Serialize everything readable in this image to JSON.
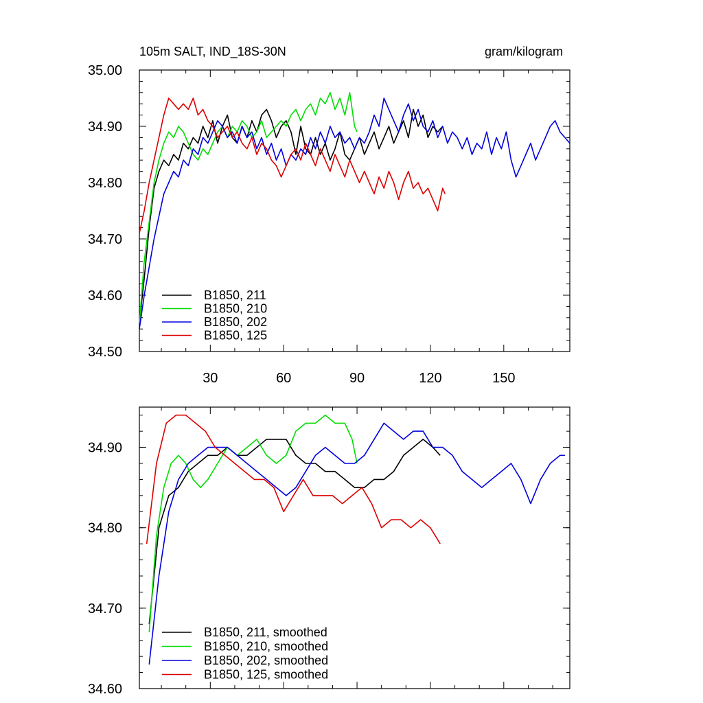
{
  "chart_data": [
    {
      "type": "line",
      "title": "105m SALT, IND_18S-30N",
      "units": "gram/kilogram",
      "xlabel": "",
      "ylabel": "",
      "xlim": [
        1,
        177
      ],
      "ylim": [
        34.5,
        35.0
      ],
      "xticks": [
        30,
        60,
        90,
        120,
        150
      ],
      "xtick_labels": [
        "30",
        "60",
        "90",
        "120",
        "150"
      ],
      "yticks": [
        34.5,
        34.6,
        34.7,
        34.8,
        34.9,
        35.0
      ],
      "ytick_labels": [
        "34.50",
        "34.60",
        "34.70",
        "34.80",
        "34.90",
        "35.00"
      ],
      "legend_position": "bottom-left",
      "series": [
        {
          "name": "B1850, 211",
          "color": "#000000",
          "x": [
            1,
            3,
            5,
            7,
            9,
            11,
            13,
            15,
            17,
            19,
            21,
            23,
            25,
            27,
            29,
            31,
            33,
            35,
            37,
            39,
            41,
            43,
            45,
            47,
            49,
            51,
            53,
            55,
            57,
            59,
            61,
            63,
            65,
            67,
            69,
            71,
            73,
            75,
            77,
            79,
            81,
            83,
            85,
            87,
            89,
            91,
            93,
            95,
            97,
            99,
            101,
            103,
            105,
            107,
            109,
            111,
            113,
            115,
            117,
            119,
            121,
            123,
            125
          ],
          "values": [
            34.55,
            34.63,
            34.72,
            34.79,
            34.82,
            34.84,
            34.83,
            34.85,
            34.84,
            34.87,
            34.86,
            34.88,
            34.87,
            34.9,
            34.88,
            34.91,
            34.87,
            34.9,
            34.92,
            34.88,
            34.87,
            34.9,
            34.88,
            34.91,
            34.89,
            34.92,
            34.93,
            34.91,
            34.88,
            34.9,
            34.91,
            34.89,
            34.85,
            34.9,
            34.86,
            34.85,
            34.88,
            34.85,
            34.87,
            34.84,
            34.86,
            34.89,
            34.85,
            34.84,
            34.86,
            34.88,
            34.85,
            34.87,
            34.89,
            34.86,
            34.88,
            34.9,
            34.87,
            34.89,
            34.91,
            34.88,
            34.93,
            34.9,
            34.92,
            34.88,
            34.9,
            34.89,
            34.9
          ]
        },
        {
          "name": "B1850, 210",
          "color": "#00dd00",
          "x": [
            1,
            3,
            5,
            7,
            9,
            11,
            13,
            15,
            17,
            19,
            21,
            23,
            25,
            27,
            29,
            31,
            33,
            35,
            37,
            39,
            41,
            43,
            45,
            47,
            49,
            51,
            53,
            55,
            57,
            59,
            61,
            63,
            65,
            67,
            69,
            71,
            73,
            75,
            77,
            79,
            81,
            83,
            85,
            87,
            89,
            90
          ],
          "values": [
            34.55,
            34.66,
            34.73,
            34.8,
            34.84,
            34.87,
            34.89,
            34.88,
            34.9,
            34.89,
            34.87,
            34.85,
            34.84,
            34.86,
            34.85,
            34.87,
            34.89,
            34.9,
            34.88,
            34.9,
            34.89,
            34.91,
            34.9,
            34.88,
            34.89,
            34.91,
            34.88,
            34.89,
            34.9,
            34.91,
            34.9,
            34.92,
            34.93,
            34.91,
            34.93,
            34.94,
            34.92,
            34.95,
            34.94,
            34.96,
            34.93,
            34.95,
            34.92,
            34.96,
            34.9,
            34.89
          ]
        },
        {
          "name": "B1850, 202",
          "color": "#0000dd",
          "x": [
            1,
            3,
            5,
            7,
            9,
            11,
            13,
            15,
            17,
            19,
            21,
            23,
            25,
            27,
            29,
            31,
            33,
            35,
            37,
            39,
            41,
            43,
            45,
            47,
            49,
            51,
            53,
            55,
            57,
            59,
            61,
            63,
            65,
            67,
            69,
            71,
            73,
            75,
            77,
            79,
            81,
            83,
            85,
            87,
            89,
            91,
            93,
            95,
            97,
            99,
            101,
            103,
            105,
            107,
            109,
            111,
            113,
            115,
            117,
            119,
            121,
            123,
            125,
            127,
            129,
            131,
            133,
            135,
            137,
            139,
            141,
            143,
            145,
            147,
            149,
            151,
            153,
            155,
            157,
            159,
            161,
            163,
            165,
            167,
            169,
            171,
            173,
            175,
            177
          ],
          "values": [
            34.54,
            34.6,
            34.65,
            34.7,
            34.74,
            34.78,
            34.8,
            34.82,
            34.81,
            34.84,
            34.83,
            34.86,
            34.85,
            34.88,
            34.87,
            34.89,
            34.91,
            34.9,
            34.88,
            34.89,
            34.87,
            34.9,
            34.88,
            34.89,
            34.86,
            34.88,
            34.85,
            34.87,
            34.84,
            34.86,
            34.83,
            34.85,
            34.84,
            34.86,
            34.85,
            34.88,
            34.86,
            34.89,
            34.87,
            34.9,
            34.88,
            34.89,
            34.87,
            34.88,
            34.86,
            34.88,
            34.87,
            34.89,
            34.92,
            34.9,
            34.95,
            34.93,
            34.91,
            34.89,
            34.92,
            34.94,
            34.91,
            34.93,
            34.9,
            34.89,
            34.91,
            34.88,
            34.9,
            34.87,
            34.89,
            34.88,
            34.86,
            34.88,
            34.85,
            34.87,
            34.86,
            34.89,
            34.85,
            34.88,
            34.86,
            34.89,
            34.84,
            34.81,
            34.83,
            34.85,
            34.87,
            34.84,
            34.86,
            34.88,
            34.9,
            34.91,
            34.89,
            34.88,
            34.87
          ]
        },
        {
          "name": "B1850, 125",
          "color": "#dd0000",
          "x": [
            1,
            3,
            5,
            7,
            9,
            11,
            13,
            15,
            17,
            19,
            21,
            23,
            25,
            27,
            29,
            31,
            33,
            35,
            37,
            39,
            41,
            43,
            45,
            47,
            49,
            51,
            53,
            55,
            57,
            59,
            61,
            63,
            65,
            67,
            69,
            71,
            73,
            75,
            77,
            79,
            81,
            83,
            85,
            87,
            89,
            91,
            93,
            95,
            97,
            99,
            101,
            103,
            105,
            107,
            109,
            111,
            113,
            115,
            117,
            119,
            121,
            123,
            125,
            126
          ],
          "values": [
            34.71,
            34.75,
            34.8,
            34.84,
            34.88,
            34.92,
            34.95,
            34.94,
            34.93,
            34.94,
            34.93,
            34.95,
            34.92,
            34.93,
            34.91,
            34.9,
            34.88,
            34.89,
            34.9,
            34.88,
            34.89,
            34.87,
            34.86,
            34.88,
            34.85,
            34.87,
            34.86,
            34.84,
            34.83,
            34.81,
            34.83,
            34.85,
            34.86,
            34.84,
            34.87,
            34.85,
            34.83,
            34.86,
            34.84,
            34.82,
            34.85,
            34.83,
            34.81,
            34.84,
            34.82,
            34.8,
            34.82,
            34.8,
            34.78,
            34.81,
            34.79,
            34.82,
            34.8,
            34.77,
            34.8,
            34.82,
            34.79,
            34.8,
            34.78,
            34.79,
            34.77,
            34.75,
            34.79,
            34.78
          ]
        }
      ]
    },
    {
      "type": "line",
      "title": "",
      "xlabel": "",
      "ylabel": "",
      "xlim": [
        1,
        177
      ],
      "ylim": [
        34.6,
        34.95
      ],
      "xticks": [
        30,
        60,
        90,
        120,
        150
      ],
      "yticks": [
        34.6,
        34.7,
        34.8,
        34.9
      ],
      "ytick_labels": [
        "34.60",
        "34.70",
        "34.80",
        "34.90"
      ],
      "legend_position": "bottom-left",
      "series": [
        {
          "name": "B1850, 211, smoothed",
          "color": "#000000",
          "x": [
            5,
            9,
            13,
            17,
            21,
            25,
            29,
            33,
            37,
            41,
            45,
            49,
            53,
            57,
            61,
            65,
            69,
            73,
            77,
            81,
            85,
            89,
            93,
            97,
            101,
            105,
            109,
            113,
            117,
            121,
            124
          ],
          "values": [
            34.68,
            34.8,
            34.84,
            34.85,
            34.87,
            34.88,
            34.89,
            34.89,
            34.9,
            34.89,
            34.89,
            34.9,
            34.91,
            34.91,
            34.91,
            34.89,
            34.88,
            34.88,
            34.87,
            34.87,
            34.86,
            34.85,
            34.85,
            34.86,
            34.86,
            34.87,
            34.89,
            34.9,
            34.91,
            34.9,
            34.89
          ]
        },
        {
          "name": "B1850, 210, smoothed",
          "color": "#00dd00",
          "x": [
            5,
            8,
            11,
            14,
            17,
            20,
            23,
            26,
            29,
            33,
            37,
            41,
            45,
            49,
            53,
            57,
            61,
            65,
            69,
            73,
            77,
            81,
            85,
            88,
            90
          ],
          "values": [
            34.67,
            34.79,
            34.85,
            34.88,
            34.89,
            34.88,
            34.86,
            34.85,
            34.86,
            34.88,
            34.9,
            34.89,
            34.9,
            34.91,
            34.89,
            34.88,
            34.89,
            34.92,
            34.93,
            34.93,
            34.94,
            34.93,
            34.93,
            34.91,
            34.88
          ]
        },
        {
          "name": "B1850, 202, smoothed",
          "color": "#0000dd",
          "x": [
            5,
            9,
            13,
            17,
            21,
            25,
            29,
            33,
            37,
            41,
            45,
            49,
            53,
            57,
            61,
            65,
            69,
            73,
            77,
            81,
            85,
            89,
            93,
            97,
            101,
            105,
            109,
            113,
            117,
            121,
            125,
            129,
            133,
            137,
            141,
            145,
            149,
            153,
            157,
            161,
            165,
            169,
            173,
            175
          ],
          "values": [
            34.63,
            34.74,
            34.82,
            34.86,
            34.88,
            34.89,
            34.9,
            34.9,
            34.9,
            34.89,
            34.88,
            34.87,
            34.86,
            34.85,
            34.84,
            34.85,
            34.87,
            34.89,
            34.9,
            34.89,
            34.88,
            34.88,
            34.89,
            34.91,
            34.93,
            34.92,
            34.91,
            34.92,
            34.92,
            34.9,
            34.9,
            34.89,
            34.87,
            34.86,
            34.85,
            34.86,
            34.87,
            34.88,
            34.86,
            34.83,
            34.86,
            34.88,
            34.89,
            34.89
          ]
        },
        {
          "name": "B1850, 125, smoothed",
          "color": "#dd0000",
          "x": [
            4,
            8,
            12,
            16,
            20,
            24,
            28,
            32,
            36,
            40,
            44,
            48,
            52,
            56,
            60,
            64,
            68,
            72,
            76,
            80,
            84,
            88,
            92,
            96,
            100,
            104,
            108,
            112,
            116,
            120,
            124
          ],
          "values": [
            34.78,
            34.88,
            34.93,
            34.94,
            34.94,
            34.93,
            34.92,
            34.9,
            34.89,
            34.88,
            34.87,
            34.86,
            34.86,
            34.85,
            34.82,
            34.84,
            34.86,
            34.84,
            34.84,
            34.84,
            34.83,
            34.84,
            34.85,
            34.83,
            34.8,
            34.81,
            34.81,
            34.8,
            34.81,
            34.8,
            34.78
          ]
        }
      ]
    }
  ]
}
